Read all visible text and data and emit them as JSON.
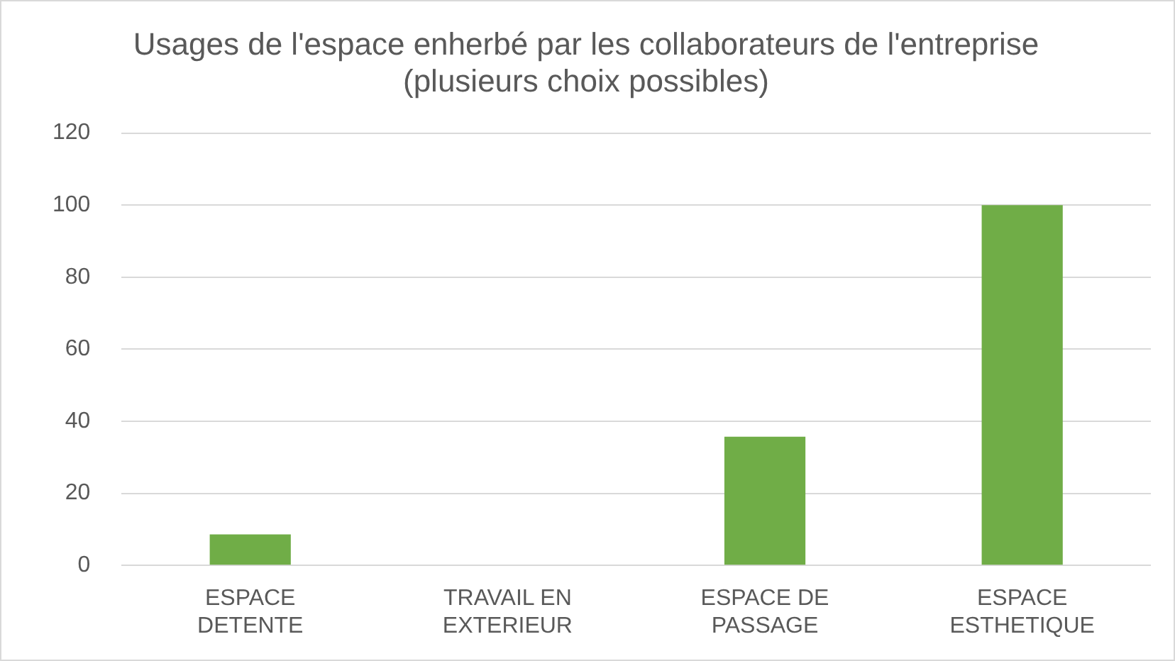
{
  "chart_data": {
    "type": "bar",
    "title": "Usages de l'espace enherbé par les collaborateurs de l'entreprise (plusieurs choix possibles)",
    "categories": [
      "ESPACE DETENTE",
      "TRAVAIL EN EXTERIEUR",
      "ESPACE DE PASSAGE",
      "ESPACE ESTHETIQUE"
    ],
    "values": [
      8.6,
      0,
      35.7,
      100
    ],
    "color": "#70ad47",
    "ylim": [
      0,
      120
    ],
    "yticks": [
      0,
      20,
      40,
      60,
      80,
      100,
      120
    ],
    "grid": "y",
    "legend": false
  }
}
